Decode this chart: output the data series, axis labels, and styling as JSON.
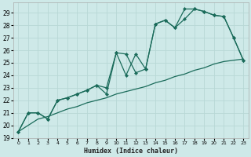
{
  "xlabel": "Humidex (Indice chaleur)",
  "bg_color": "#cee9e8",
  "grid_color": "#b8d8d6",
  "line_color": "#1a6b5a",
  "xlim": [
    -0.5,
    23.5
  ],
  "ylim": [
    19,
    29.8
  ],
  "xticks": [
    0,
    1,
    2,
    3,
    4,
    5,
    6,
    7,
    8,
    9,
    10,
    11,
    12,
    13,
    14,
    15,
    16,
    17,
    18,
    19,
    20,
    21,
    22,
    23
  ],
  "yticks": [
    19,
    20,
    21,
    22,
    23,
    24,
    25,
    26,
    27,
    28,
    29
  ],
  "series1_y": [
    19.5,
    21.0,
    21.0,
    20.5,
    22.0,
    22.2,
    22.5,
    22.8,
    23.2,
    22.5,
    25.8,
    24.0,
    25.7,
    24.5,
    28.1,
    28.4,
    27.8,
    28.5,
    29.3,
    29.1,
    28.8,
    28.7,
    27.0,
    25.2
  ],
  "series2_y": [
    19.5,
    21.0,
    21.0,
    20.5,
    22.0,
    22.2,
    22.5,
    22.8,
    23.2,
    23.0,
    25.8,
    25.7,
    24.2,
    24.5,
    28.1,
    28.4,
    27.8,
    29.3,
    29.3,
    29.1,
    28.8,
    28.7,
    27.0,
    25.2
  ],
  "series3_y": [
    19.5,
    20.0,
    20.5,
    20.7,
    21.0,
    21.3,
    21.5,
    21.8,
    22.0,
    22.2,
    22.5,
    22.7,
    22.9,
    23.1,
    23.4,
    23.6,
    23.9,
    24.1,
    24.4,
    24.6,
    24.9,
    25.1,
    25.2,
    25.3
  ]
}
